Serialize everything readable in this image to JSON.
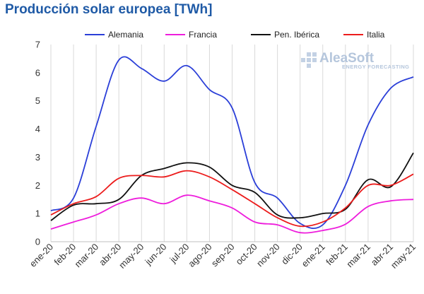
{
  "chart_data": {
    "type": "line",
    "title": "Producción solar europea [TWh]",
    "xlabel": "",
    "ylabel": "",
    "categories": [
      "ene-20",
      "feb-20",
      "mar-20",
      "abr-20",
      "may-20",
      "jun-20",
      "jul-20",
      "ago-20",
      "sep-20",
      "oct-20",
      "nov-20",
      "dic-20",
      "ene-21",
      "feb-21",
      "mar-21",
      "abr-21",
      "may-21"
    ],
    "ylim": [
      0,
      7
    ],
    "yticks": [
      0,
      1,
      2,
      3,
      4,
      5,
      6,
      7
    ],
    "grid": "vertical",
    "legend": "top",
    "series": [
      {
        "name": "Alemania",
        "color": "#2b3fd8",
        "values": [
          1.1,
          1.55,
          4.1,
          6.45,
          6.15,
          5.7,
          6.25,
          5.4,
          4.75,
          2.1,
          1.55,
          0.65,
          0.6,
          2.0,
          4.15,
          5.45,
          5.85
        ]
      },
      {
        "name": "Francia",
        "color": "#ee1ddc",
        "values": [
          0.45,
          0.7,
          0.95,
          1.35,
          1.55,
          1.35,
          1.65,
          1.45,
          1.2,
          0.7,
          0.6,
          0.32,
          0.4,
          0.62,
          1.25,
          1.45,
          1.5
        ]
      },
      {
        "name": "Pen. Ibérica",
        "color": "#111111",
        "values": [
          0.75,
          1.3,
          1.35,
          1.5,
          2.35,
          2.6,
          2.8,
          2.65,
          2.0,
          1.75,
          0.95,
          0.85,
          1.0,
          1.15,
          2.2,
          1.95,
          3.15
        ]
      },
      {
        "name": "Italia",
        "color": "#ec1c1c",
        "values": [
          0.95,
          1.35,
          1.6,
          2.25,
          2.35,
          2.3,
          2.52,
          2.3,
          1.85,
          1.35,
          0.85,
          0.55,
          0.7,
          1.2,
          2.0,
          2.0,
          2.4
        ]
      }
    ]
  },
  "watermark": {
    "brand": "AleaSoft",
    "tagline": "ENERGY FORECASTING"
  }
}
